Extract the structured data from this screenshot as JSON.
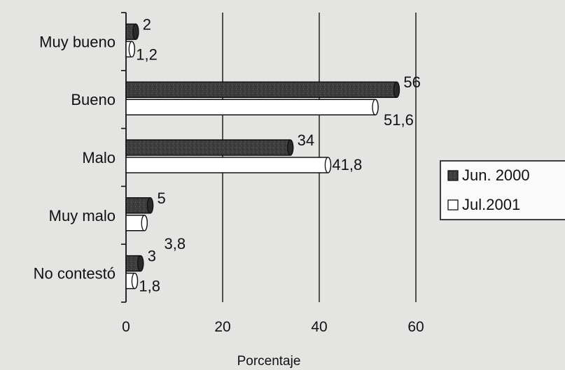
{
  "chart_data": {
    "type": "bar",
    "orientation": "horizontal",
    "categories": [
      "Muy bueno",
      "Bueno",
      "Malo",
      "Muy malo",
      "No contestó"
    ],
    "series": [
      {
        "name": "Jun. 2000",
        "values": [
          2,
          56,
          34,
          5,
          3
        ],
        "labels": [
          "2",
          "56",
          "34",
          "5",
          "3"
        ],
        "color": "#3c3c3c"
      },
      {
        "name": "Jul.2001",
        "values": [
          1.2,
          51.6,
          41.8,
          3.8,
          1.8
        ],
        "labels": [
          "1,2",
          "51,6",
          "41,8",
          "3,8",
          "1,8"
        ],
        "color": "#ffffff"
      }
    ],
    "xlabel": "Porcentaje",
    "ylabel": "",
    "xlim": [
      0,
      60
    ],
    "xticks": [
      0,
      20,
      40,
      60
    ],
    "xtick_labels": [
      "0",
      "20",
      "40",
      "60"
    ],
    "grid": true,
    "legend_position": "right"
  }
}
